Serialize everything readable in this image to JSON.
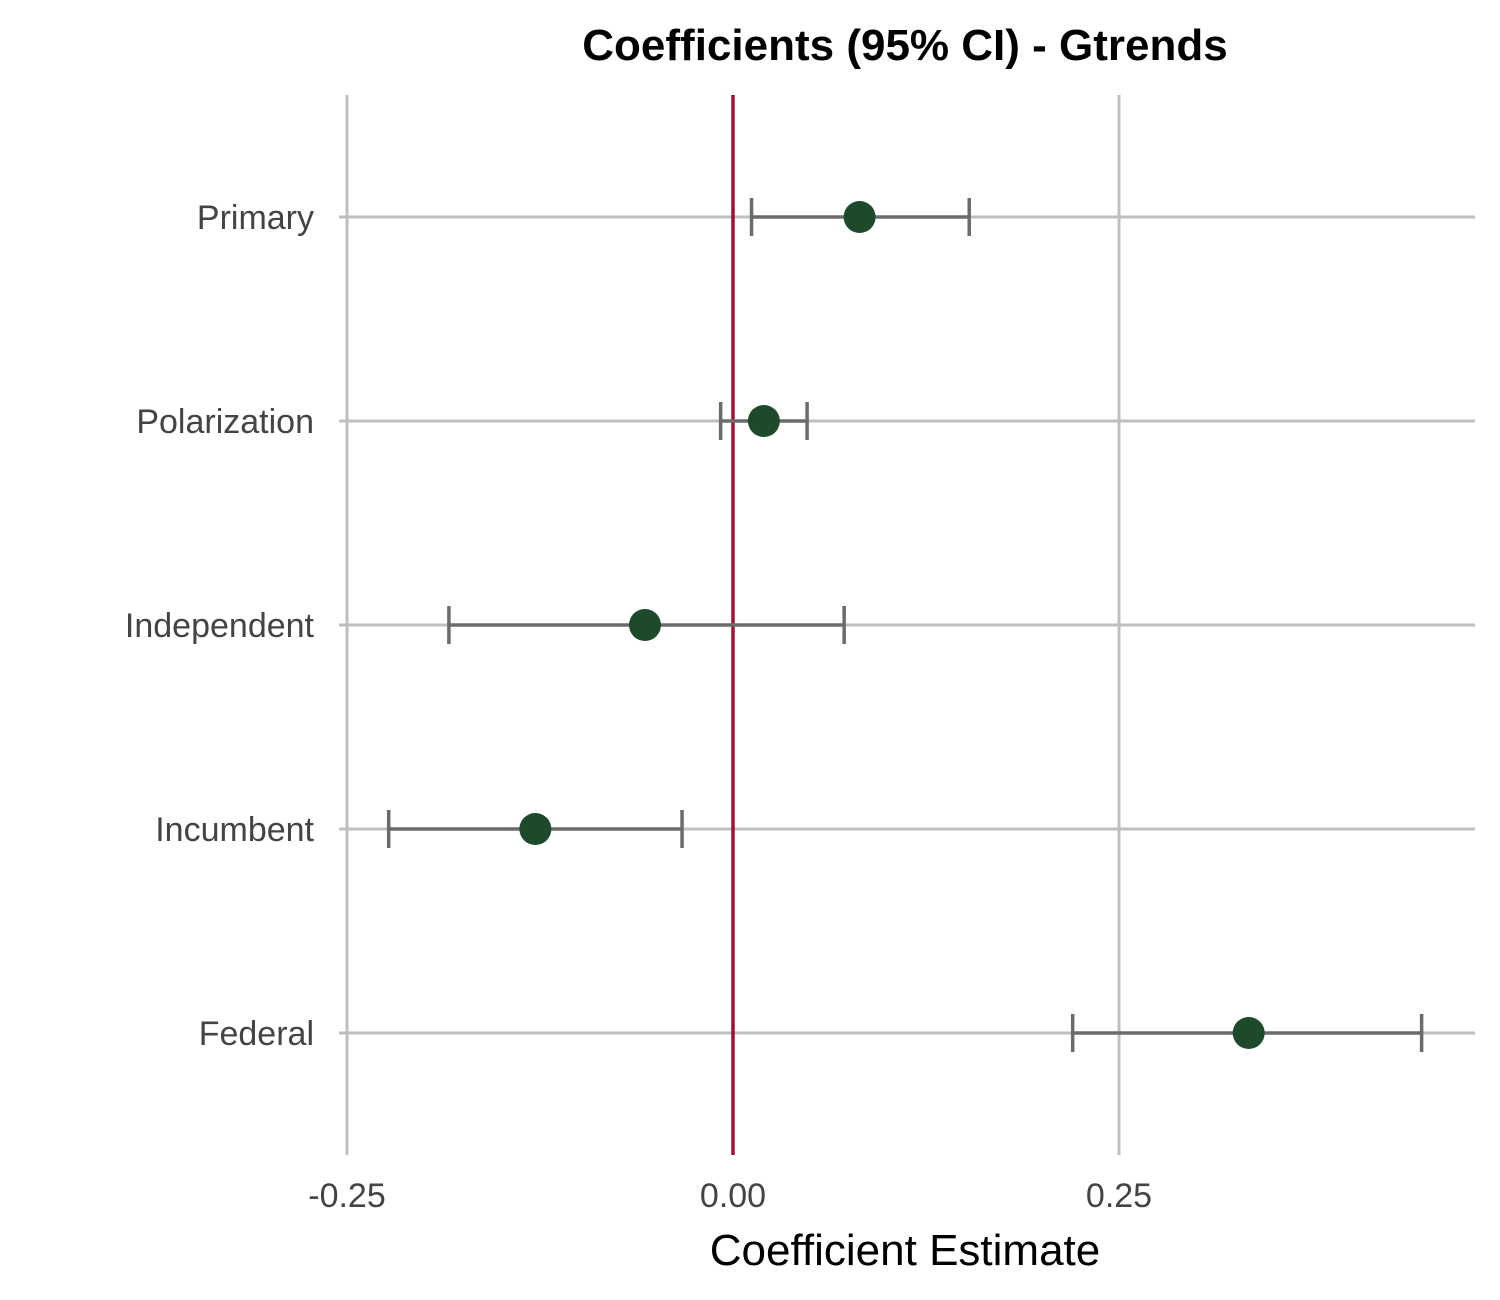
{
  "chart_data": {
    "type": "scatter",
    "title": "Coefficients (95% CI) - Gtrends",
    "xlabel": "Coefficient Estimate",
    "ylabel": "",
    "xlim": [
      -0.25,
      0.49
    ],
    "x_ticks": [
      "-0.25",
      "0.00",
      "0.25"
    ],
    "x_tick_values": [
      -0.25,
      0,
      0.25
    ],
    "reference_line": 0,
    "grid": true,
    "categories": [
      "Primary",
      "Polarization",
      "Independent",
      "Incumbent",
      "Federal"
    ],
    "estimates": [
      0.082,
      0.02,
      -0.057,
      -0.128,
      0.334
    ],
    "ci_low": [
      0.012,
      -0.008,
      -0.184,
      -0.223,
      0.22
    ],
    "ci_high": [
      0.153,
      0.048,
      0.072,
      -0.033,
      0.446
    ]
  },
  "colors": {
    "point": "#1e4a2c",
    "errorbar": "#6b6b6b",
    "reference_line": "#a01035",
    "grid": "#bfbfbf",
    "tick_text": "#444444"
  }
}
